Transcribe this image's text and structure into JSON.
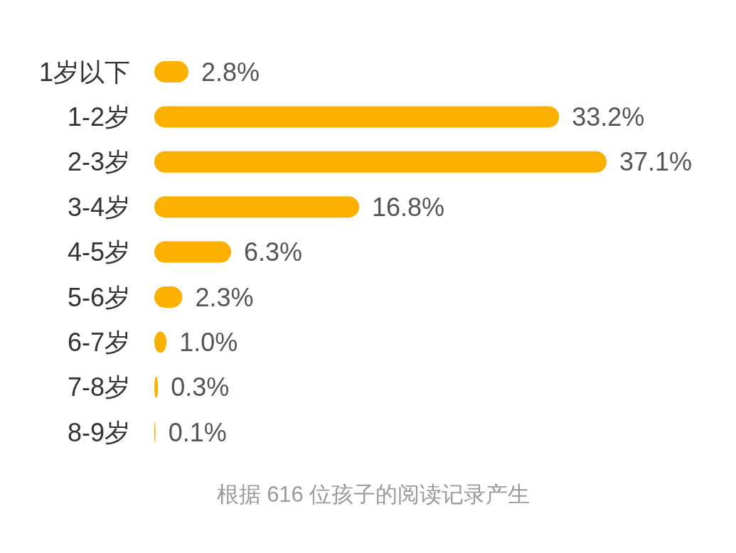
{
  "chart_data": {
    "type": "bar",
    "orientation": "horizontal",
    "categories": [
      "1岁以下",
      "1-2岁",
      "2-3岁",
      "3-4岁",
      "4-5岁",
      "5-6岁",
      "6-7岁",
      "7-8岁",
      "8-9岁"
    ],
    "values": [
      2.8,
      33.2,
      37.1,
      16.8,
      6.3,
      2.3,
      1.0,
      0.3,
      0.1
    ],
    "value_labels": [
      "2.8%",
      "33.2%",
      "37.1%",
      "16.8%",
      "6.3%",
      "2.3%",
      "1.0%",
      "0.3%",
      "0.1%"
    ],
    "color": "#fbb000",
    "annotations": [
      "根据 616 位孩子的阅读记录产生"
    ]
  }
}
